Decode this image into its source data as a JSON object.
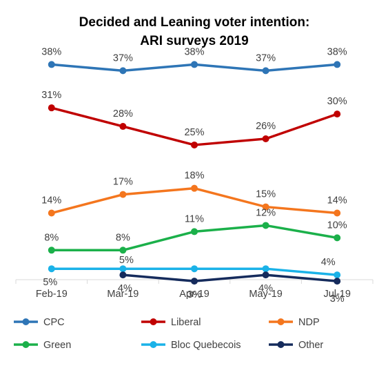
{
  "chart_data": {
    "type": "line",
    "title": "Decided and Leaning voter intention:",
    "subtitle": "ARI surveys 2019",
    "xlabel": "",
    "ylabel": "",
    "categories": [
      "Feb-19",
      "Mar-19",
      "Apr-19",
      "May-19",
      "Jul-19"
    ],
    "ylim": [
      0,
      40
    ],
    "grid": false,
    "legend_position": "bottom",
    "series": [
      {
        "name": "CPC",
        "color": "#2E75B6",
        "values": [
          38,
          37,
          38,
          37,
          38
        ],
        "labels": [
          "38%",
          "37%",
          "38%",
          "37%",
          "38%"
        ]
      },
      {
        "name": "Liberal",
        "color": "#C00000",
        "values": [
          31,
          28,
          25,
          26,
          30
        ],
        "labels": [
          "31%",
          "28%",
          "25%",
          "26%",
          "30%"
        ]
      },
      {
        "name": "NDP",
        "color": "#F4761E",
        "values": [
          14,
          17,
          18,
          15,
          14
        ],
        "labels": [
          "14%",
          "17%",
          "18%",
          "15%",
          "14%"
        ]
      },
      {
        "name": "Green",
        "color": "#1BB04A",
        "values": [
          8,
          8,
          11,
          12,
          10
        ],
        "labels": [
          "8%",
          "8%",
          "11%",
          "12%",
          "10%"
        ]
      },
      {
        "name": "Bloc Quebecois",
        "color": "#1AB2E8",
        "values": [
          5,
          5,
          5,
          5,
          4
        ],
        "labels": [
          "5%",
          "5%",
          "5%",
          "5%",
          "4%"
        ]
      },
      {
        "name": "Other",
        "color": "#152B5C",
        "values": [
          null,
          4,
          3,
          4,
          3
        ],
        "labels": [
          null,
          "4%",
          "3%",
          "4%",
          "3%"
        ]
      }
    ]
  }
}
